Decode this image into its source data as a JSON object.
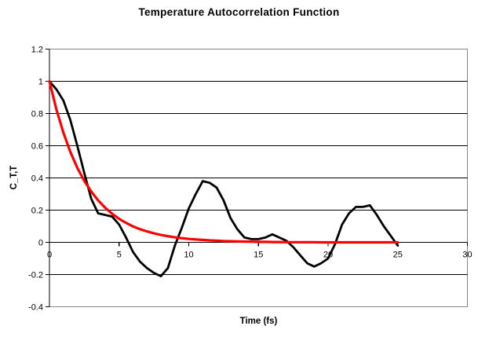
{
  "title": "Temperature Autocorrelation Function",
  "chart_data": {
    "type": "line",
    "title": "Temperature Autocorrelation Function",
    "xlabel": "Time (fs)",
    "ylabel": "C_T,T",
    "xlim": [
      0,
      30
    ],
    "ylim": [
      -0.4,
      1.2
    ],
    "x_tick_values": [
      0,
      5,
      10,
      15,
      20,
      25,
      30
    ],
    "x_tick_labels": [
      "0",
      "5",
      "10",
      "15",
      "20",
      "25",
      "30"
    ],
    "y_tick_values": [
      -0.4,
      -0.2,
      0,
      0.2,
      0.4,
      0.6,
      0.8,
      1,
      1.2
    ],
    "y_tick_labels": [
      "-0.4",
      "-0.2",
      "0",
      "0.2",
      "0.4",
      "0.6",
      "0.8",
      "1",
      "1.2"
    ],
    "grid": "horizontal-only",
    "legend": "none",
    "category_axis_crosses_at": 0,
    "x": [
      0,
      0.5,
      1,
      1.5,
      2,
      2.5,
      3,
      3.5,
      4,
      4.5,
      5,
      5.5,
      6,
      6.5,
      7,
      7.5,
      8,
      8.5,
      9,
      9.5,
      10,
      10.5,
      11,
      11.5,
      12,
      12.5,
      13,
      13.5,
      14,
      14.5,
      15,
      15.5,
      16,
      16.5,
      17,
      17.5,
      18,
      18.5,
      19,
      19.5,
      20,
      20.5,
      21,
      21.5,
      22,
      22.5,
      23,
      23.5,
      24,
      24.5,
      25
    ],
    "series": [
      {
        "name": "black-line-autocorrelation",
        "color": "#000000",
        "width": 2.8,
        "values": [
          1.0,
          0.95,
          0.88,
          0.76,
          0.6,
          0.43,
          0.27,
          0.18,
          0.17,
          0.16,
          0.11,
          0.03,
          -0.06,
          -0.12,
          -0.16,
          -0.19,
          -0.21,
          -0.16,
          -0.02,
          0.09,
          0.21,
          0.3,
          0.38,
          0.37,
          0.34,
          0.26,
          0.15,
          0.08,
          0.03,
          0.02,
          0.02,
          0.03,
          0.05,
          0.03,
          0.01,
          -0.03,
          -0.08,
          -0.13,
          -0.15,
          -0.13,
          -0.1,
          -0.01,
          0.11,
          0.18,
          0.22,
          0.22,
          0.23,
          0.17,
          0.1,
          0.04,
          -0.02
        ]
      },
      {
        "name": "red-line-exponential-decay",
        "color": "#ff0000",
        "width": 3.2,
        "values": [
          1,
          0.825,
          0.681,
          0.562,
          0.463,
          0.382,
          0.315,
          0.26,
          0.215,
          0.177,
          0.146,
          0.121,
          0.099,
          0.082,
          0.068,
          0.056,
          0.046,
          0.038,
          0.031,
          0.026,
          0.021,
          0.018,
          0.015,
          0.012,
          0.01,
          0.008,
          0.007,
          0.006,
          0.005,
          0.004,
          0.003,
          0.003,
          0.002,
          0.002,
          0.001,
          0.001,
          0.001,
          0.001,
          0.001,
          0,
          0,
          0,
          0,
          0,
          0,
          0,
          0,
          0,
          0,
          0,
          0
        ]
      }
    ],
    "colors": {
      "gridline": "#000000",
      "plot_border": "#848484",
      "axis": "#000000",
      "background": "#ffffff",
      "text": "#000000"
    }
  }
}
